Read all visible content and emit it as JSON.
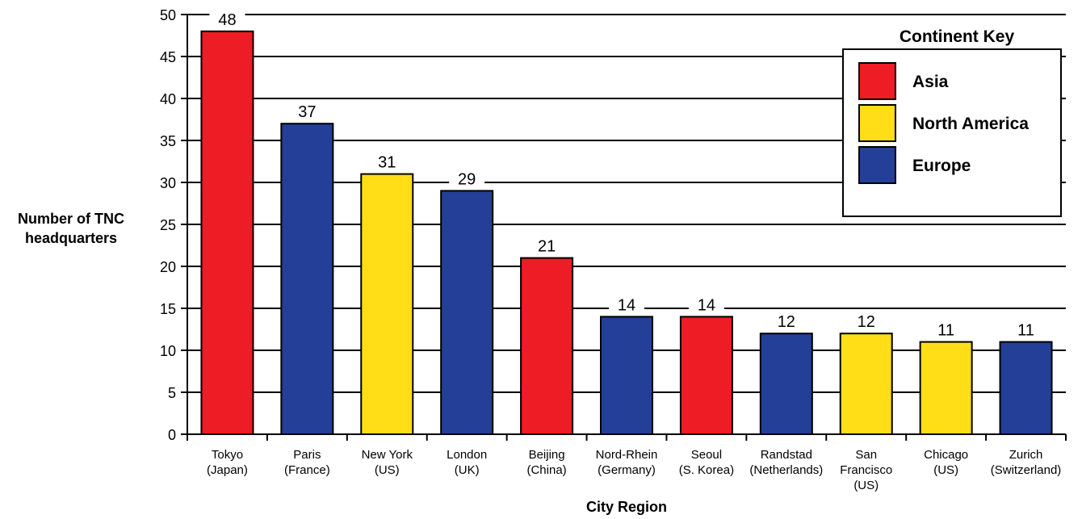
{
  "chart_data": {
    "type": "bar",
    "title": "",
    "xlabel": "City Region",
    "ylabel_lines": [
      "Number of TNC",
      "headquarters"
    ],
    "ylim": [
      0,
      50
    ],
    "ytick_step": 5,
    "grid": true,
    "legend_position": "top-right",
    "legend_title": "Continent Key",
    "legend": [
      {
        "name": "Asia",
        "color": "#ee1c25"
      },
      {
        "name": "North America",
        "color": "#ffdd17"
      },
      {
        "name": "Europe",
        "color": "#233f97"
      }
    ],
    "categories": [
      [
        "Tokyo",
        "(Japan)"
      ],
      [
        "Paris",
        "(France)"
      ],
      [
        "New York",
        "(US)"
      ],
      [
        "London",
        "(UK)"
      ],
      [
        "Beijing",
        "(China)"
      ],
      [
        "Nord-Rhein",
        "(Germany)"
      ],
      [
        "Seoul",
        "(S. Korea)"
      ],
      [
        "Randstad",
        "(Netherlands)"
      ],
      [
        "San",
        "Francisco",
        "(US)"
      ],
      [
        "Chicago",
        "(US)"
      ],
      [
        "Zurich",
        "(Switzerland)"
      ]
    ],
    "values": [
      48,
      37,
      31,
      29,
      21,
      14,
      14,
      12,
      12,
      11,
      11
    ],
    "continents": [
      "Asia",
      "Europe",
      "North America",
      "Europe",
      "Asia",
      "Europe",
      "Asia",
      "Europe",
      "North America",
      "North America",
      "Europe"
    ]
  }
}
